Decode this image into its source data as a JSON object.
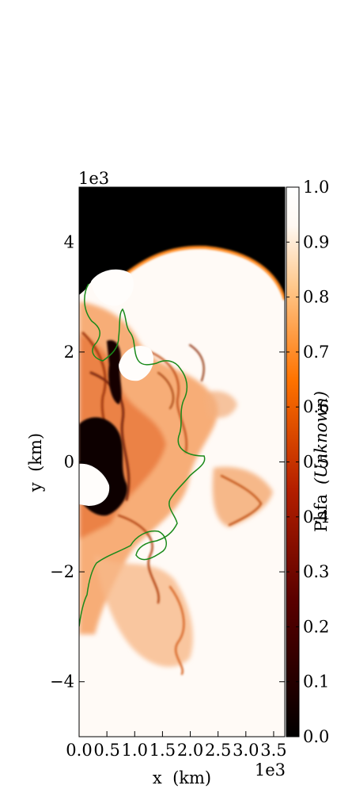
{
  "chart_data": {
    "type": "heatmap",
    "title": "",
    "xlabel": "x  (km)",
    "ylabel": "y  (km)",
    "x_offset_text": "1e3",
    "y_offset_text": "1e3",
    "xlim": [
      0,
      3.7
    ],
    "ylim": [
      -5,
      5
    ],
    "x_ticks": [
      0.0,
      0.5,
      1.0,
      1.5,
      2.0,
      2.5,
      3.0,
      3.5
    ],
    "x_tick_labels": [
      "0.0",
      "0.5",
      "1.0",
      "1.5",
      "2.0",
      "2.5",
      "3.0",
      "3.5"
    ],
    "y_ticks": [
      -4,
      -2,
      0,
      2,
      4
    ],
    "y_tick_labels": [
      "−4",
      "−2",
      "0",
      "2",
      "4"
    ],
    "colorbar": {
      "label": "Phfa",
      "label_units": "(Unknown)",
      "range": [
        0.0,
        1.0
      ],
      "ticks": [
        0.0,
        0.1,
        0.2,
        0.3,
        0.4,
        0.5,
        0.6,
        0.7,
        0.8,
        0.9,
        1.0
      ],
      "tick_labels": [
        "0.0",
        "0.1",
        "0.2",
        "0.3",
        "0.4",
        "0.5",
        "0.6",
        "0.7",
        "0.8",
        "0.9",
        "1.0"
      ],
      "colormap": [
        "#000000",
        "#5a0000",
        "#b41e00",
        "#ff7300",
        "#ffc88c",
        "#fff8f2",
        "#ffffff"
      ]
    },
    "contour_color": "#1a8a1a",
    "grid": false
  }
}
